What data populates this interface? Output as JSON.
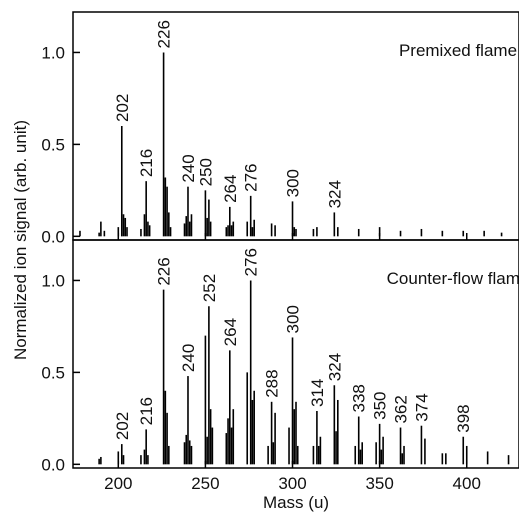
{
  "chart_data": [
    {
      "type": "stick",
      "title": "Premixed flame",
      "ylabel": "Normalized ion signal (arb. unit)",
      "x": [
        178,
        189,
        190,
        192,
        200,
        202,
        203,
        204,
        205,
        213,
        215,
        216,
        217,
        218,
        226,
        227,
        228,
        229,
        230,
        238,
        239,
        240,
        241,
        242,
        250,
        251,
        252,
        253,
        262,
        263,
        264,
        265,
        266,
        274,
        276,
        277,
        278,
        288,
        290,
        300,
        301,
        302,
        312,
        314,
        324,
        326,
        338,
        350,
        362,
        374,
        386,
        398,
        410,
        420
      ],
      "values": [
        0.03,
        0.02,
        0.08,
        0.03,
        0.05,
        0.6,
        0.12,
        0.1,
        0.05,
        0.04,
        0.12,
        0.3,
        0.08,
        0.06,
        1.0,
        0.32,
        0.27,
        0.13,
        0.05,
        0.07,
        0.11,
        0.27,
        0.08,
        0.12,
        0.25,
        0.1,
        0.2,
        0.08,
        0.05,
        0.06,
        0.16,
        0.06,
        0.08,
        0.08,
        0.22,
        0.05,
        0.09,
        0.07,
        0.06,
        0.19,
        0.05,
        0.04,
        0.04,
        0.05,
        0.13,
        0.05,
        0.04,
        0.05,
        0.03,
        0.04,
        0.03,
        0.03,
        0.03,
        0.02
      ],
      "annotations": [
        {
          "text": "202",
          "x": 202,
          "y": 0.6
        },
        {
          "text": "216",
          "x": 216,
          "y": 0.3
        },
        {
          "text": "226",
          "x": 226,
          "y": 1.0
        },
        {
          "text": "240",
          "x": 240,
          "y": 0.27
        },
        {
          "text": "250",
          "x": 250,
          "y": 0.25
        },
        {
          "text": "264",
          "x": 264,
          "y": 0.16
        },
        {
          "text": "276",
          "x": 276,
          "y": 0.22
        },
        {
          "text": "300",
          "x": 300,
          "y": 0.19
        },
        {
          "text": "324",
          "x": 324,
          "y": 0.13
        }
      ],
      "color": "#000000",
      "xlim": [
        174,
        430
      ],
      "ylim": [
        -0.02,
        1.22
      ],
      "xticks": [
        200,
        250,
        300,
        350,
        400
      ],
      "show_xtick_labels": false,
      "yticks": [
        {
          "value": 0,
          "label": "0.0"
        },
        0.5,
        {
          "value": 1,
          "label": "1.0"
        }
      ]
    },
    {
      "type": "stick",
      "title": "Counter-flow flame",
      "xlabel": "Mass (u)",
      "x": [
        189,
        190,
        200,
        202,
        203,
        213,
        215,
        216,
        217,
        226,
        227,
        228,
        229,
        238,
        239,
        240,
        241,
        242,
        250,
        251,
        252,
        253,
        254,
        262,
        263,
        264,
        265,
        266,
        274,
        276,
        277,
        278,
        286,
        288,
        289,
        290,
        298,
        300,
        301,
        302,
        303,
        312,
        314,
        315,
        316,
        324,
        325,
        326,
        336,
        338,
        339,
        340,
        348,
        350,
        351,
        352,
        362,
        363,
        364,
        374,
        376,
        386,
        388,
        398,
        400,
        412,
        424
      ],
      "values": [
        0.03,
        0.04,
        0.07,
        0.11,
        0.05,
        0.05,
        0.08,
        0.19,
        0.05,
        0.95,
        0.4,
        0.28,
        0.1,
        0.12,
        0.16,
        0.48,
        0.13,
        0.1,
        0.7,
        0.15,
        0.86,
        0.3,
        0.2,
        0.17,
        0.25,
        0.62,
        0.2,
        0.3,
        0.5,
        1.0,
        0.35,
        0.4,
        0.1,
        0.34,
        0.12,
        0.28,
        0.2,
        0.69,
        0.3,
        0.34,
        0.1,
        0.1,
        0.29,
        0.1,
        0.15,
        0.43,
        0.18,
        0.35,
        0.1,
        0.26,
        0.08,
        0.12,
        0.12,
        0.22,
        0.08,
        0.15,
        0.2,
        0.06,
        0.1,
        0.21,
        0.14,
        0.06,
        0.06,
        0.15,
        0.1,
        0.07,
        0.05
      ],
      "annotations": [
        {
          "text": "202",
          "x": 202,
          "y": 0.11
        },
        {
          "text": "216",
          "x": 216,
          "y": 0.19
        },
        {
          "text": "226",
          "x": 226,
          "y": 0.95
        },
        {
          "text": "240",
          "x": 240,
          "y": 0.48
        },
        {
          "text": "252",
          "x": 252,
          "y": 0.86
        },
        {
          "text": "264",
          "x": 264,
          "y": 0.62
        },
        {
          "text": "276",
          "x": 276,
          "y": 1.0
        },
        {
          "text": "288",
          "x": 288,
          "y": 0.34
        },
        {
          "text": "300",
          "x": 300,
          "y": 0.69
        },
        {
          "text": "314",
          "x": 314,
          "y": 0.29
        },
        {
          "text": "324",
          "x": 324,
          "y": 0.43
        },
        {
          "text": "338",
          "x": 338,
          "y": 0.26
        },
        {
          "text": "350",
          "x": 350,
          "y": 0.22
        },
        {
          "text": "362",
          "x": 362,
          "y": 0.2
        },
        {
          "text": "374",
          "x": 374,
          "y": 0.21
        },
        {
          "text": "398",
          "x": 398,
          "y": 0.15
        }
      ],
      "color": "#000000",
      "xlim": [
        174,
        430
      ],
      "ylim": [
        -0.02,
        1.22
      ],
      "xticks": [
        200,
        250,
        300,
        350,
        400
      ],
      "show_xtick_labels": true,
      "yticks": [
        {
          "value": 0,
          "label": "0.0"
        },
        0.5,
        {
          "value": 1,
          "label": "1.0"
        }
      ]
    }
  ]
}
